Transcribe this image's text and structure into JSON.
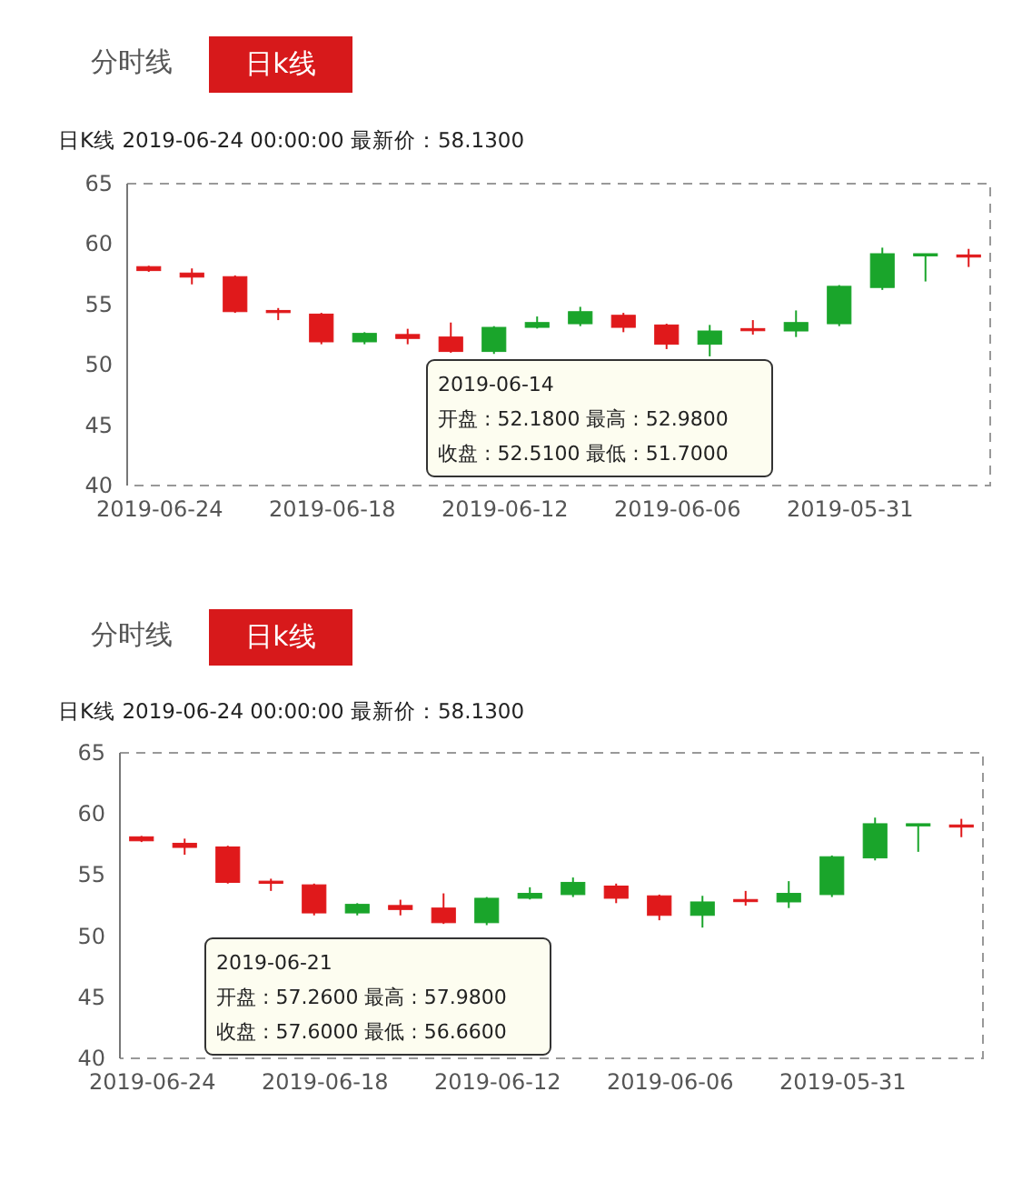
{
  "chart_data": [
    {
      "type": "candlestick",
      "title": "日K线  2019-06-24 00:00:00  最新价：58.1300",
      "annotations": [
        "分时线",
        "日k线",
        "2019-06-14",
        "开盘 : 52.1800 最高 : 52.9800",
        "收盘 : 52.5100 最低 : 51.7000"
      ],
      "categories": [
        "2019-06-24",
        null,
        null,
        null,
        "2019-06-18",
        null,
        null,
        null,
        "2019-06-12",
        null,
        null,
        null,
        "2019-06-06",
        null,
        null,
        null,
        "2019-05-31",
        null,
        null,
        null
      ],
      "ohlc": [
        [
          57.8,
          58.2,
          57.7,
          58.13
        ],
        [
          57.26,
          57.98,
          56.66,
          57.6
        ],
        [
          54.4,
          57.4,
          54.3,
          57.3
        ],
        [
          54.4,
          54.7,
          53.7,
          54.5
        ],
        [
          51.9,
          54.3,
          51.7,
          54.2
        ],
        [
          52.6,
          52.7,
          51.7,
          51.9
        ],
        [
          52.18,
          52.98,
          51.7,
          52.51
        ],
        [
          51.1,
          53.5,
          51.0,
          52.3
        ],
        [
          53.1,
          53.2,
          50.9,
          51.1
        ],
        [
          53.5,
          54.0,
          53.0,
          53.1
        ],
        [
          54.4,
          54.8,
          53.2,
          53.4
        ],
        [
          53.1,
          54.3,
          52.7,
          54.1
        ],
        [
          51.7,
          53.4,
          51.3,
          53.3
        ],
        [
          52.8,
          53.3,
          50.7,
          51.7
        ],
        [
          52.9,
          53.7,
          52.5,
          53.0
        ],
        [
          53.5,
          54.5,
          52.3,
          52.8
        ],
        [
          56.5,
          56.6,
          53.2,
          53.4
        ],
        [
          59.2,
          59.7,
          56.2,
          56.4
        ],
        [
          59.2,
          59.2,
          56.9,
          59.1
        ],
        [
          59.0,
          59.6,
          58.1,
          59.1
        ]
      ],
      "colors": [
        "#e0191b",
        "#e0191b",
        "#e0191b",
        "#e0191b",
        "#e0191b",
        "#1aa52b",
        "#e0191b",
        "#e0191b",
        "#1aa52b",
        "#1aa52b",
        "#1aa52b",
        "#e0191b",
        "#e0191b",
        "#1aa52b",
        "#e0191b",
        "#1aa52b",
        "#1aa52b",
        "#1aa52b",
        "#1aa52b",
        "#e0191b"
      ],
      "ylim": [
        40,
        65
      ],
      "yticks": [
        40,
        45,
        50,
        55,
        60,
        65
      ]
    },
    {
      "type": "candlestick",
      "title": "日K线  2019-06-24 00:00:00  最新价：58.1300",
      "annotations": [
        "分时线",
        "日k线",
        "2019-06-21",
        "开盘 : 57.2600 最高 : 57.9800",
        "收盘 : 57.6000 最低 : 56.6600"
      ],
      "categories": [
        "2019-06-24",
        null,
        null,
        null,
        "2019-06-18",
        null,
        null,
        null,
        "2019-06-12",
        null,
        null,
        null,
        "2019-06-06",
        null,
        null,
        null,
        "2019-05-31",
        null,
        null,
        null
      ],
      "ohlc": [
        [
          57.8,
          58.2,
          57.7,
          58.13
        ],
        [
          57.26,
          57.98,
          56.66,
          57.6
        ],
        [
          54.4,
          57.4,
          54.3,
          57.3
        ],
        [
          54.4,
          54.7,
          53.7,
          54.5
        ],
        [
          51.9,
          54.3,
          51.7,
          54.2
        ],
        [
          52.6,
          52.7,
          51.7,
          51.9
        ],
        [
          52.18,
          52.98,
          51.7,
          52.51
        ],
        [
          51.1,
          53.5,
          51.0,
          52.3
        ],
        [
          53.1,
          53.2,
          50.9,
          51.1
        ],
        [
          53.5,
          54.0,
          53.0,
          53.1
        ],
        [
          54.4,
          54.8,
          53.2,
          53.4
        ],
        [
          53.1,
          54.3,
          52.7,
          54.1
        ],
        [
          51.7,
          53.4,
          51.3,
          53.3
        ],
        [
          52.8,
          53.3,
          50.7,
          51.7
        ],
        [
          52.9,
          53.7,
          52.5,
          53.0
        ],
        [
          53.5,
          54.5,
          52.3,
          52.8
        ],
        [
          56.5,
          56.6,
          53.2,
          53.4
        ],
        [
          59.2,
          59.7,
          56.2,
          56.4
        ],
        [
          59.2,
          59.2,
          56.9,
          59.1
        ],
        [
          59.0,
          59.6,
          58.1,
          59.1
        ]
      ],
      "colors": [
        "#e0191b",
        "#e0191b",
        "#e0191b",
        "#e0191b",
        "#e0191b",
        "#1aa52b",
        "#e0191b",
        "#e0191b",
        "#1aa52b",
        "#1aa52b",
        "#1aa52b",
        "#e0191b",
        "#e0191b",
        "#1aa52b",
        "#e0191b",
        "#1aa52b",
        "#1aa52b",
        "#1aa52b",
        "#1aa52b",
        "#e0191b"
      ],
      "ylim": [
        40,
        65
      ],
      "yticks": [
        40,
        45,
        50,
        55,
        60,
        65
      ]
    }
  ]
}
